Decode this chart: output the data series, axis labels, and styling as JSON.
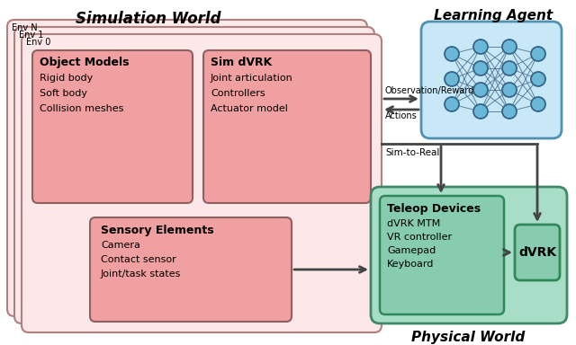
{
  "title_sim": "Simulation World",
  "title_agent": "Learning Agent",
  "title_physical": "Physical World",
  "box_sim_bg": "#fce8e8",
  "box_sim_border": "#b08080",
  "box_inner_bg": "#f0a0a0",
  "box_inner_border": "#906060",
  "box_agent_bg": "#c8e8f8",
  "box_agent_border": "#5090b0",
  "box_physical_bg": "#a8ddc8",
  "box_physical_border": "#408868",
  "box_teleop_bg": "#88ccb0",
  "box_teleop_border": "#308858",
  "box_dvrk_bg": "#88ccb0",
  "box_dvrk_border": "#308858",
  "arrow_color": "#444444",
  "text_color": "#000000",
  "node_color": "#6ab8d8",
  "node_edge": "#336688"
}
